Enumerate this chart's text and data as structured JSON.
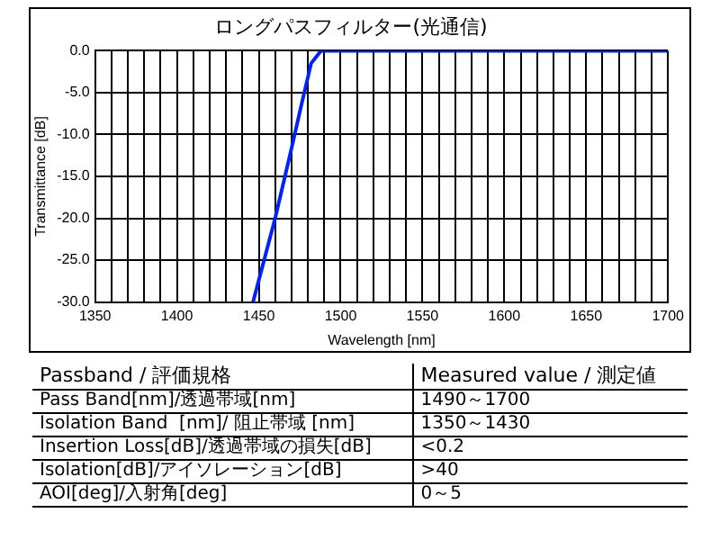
{
  "chart_data": {
    "type": "line",
    "title": "ロングパスフィルター(光通信)",
    "xlabel": "Wavelength [nm]",
    "ylabel": "Transmittance [dB]",
    "series": [
      {
        "color": "#0022ff",
        "x": [
          1446.5,
          1460,
          1469,
          1476,
          1479,
          1482,
          1488,
          1700
        ],
        "values": [
          -30,
          -20,
          -12.5,
          -6.5,
          -4,
          -1.5,
          0,
          0
        ]
      }
    ],
    "xlim": [
      1350,
      1700
    ],
    "xticks": [
      1350,
      {
        "value": 1360,
        "label": null
      },
      {
        "value": 1370,
        "label": null
      },
      {
        "value": 1380,
        "label": null
      },
      {
        "value": 1390,
        "label": null
      },
      1400,
      {
        "value": 1410,
        "label": null
      },
      {
        "value": 1420,
        "label": null
      },
      {
        "value": 1430,
        "label": null
      },
      {
        "value": 1440,
        "label": null
      },
      1450,
      {
        "value": 1460,
        "label": null
      },
      {
        "value": 1470,
        "label": null
      },
      {
        "value": 1480,
        "label": null
      },
      {
        "value": 1490,
        "label": null
      },
      1500,
      {
        "value": 1510,
        "label": null
      },
      {
        "value": 1520,
        "label": null
      },
      {
        "value": 1530,
        "label": null
      },
      {
        "value": 1540,
        "label": null
      },
      1550,
      {
        "value": 1560,
        "label": null
      },
      {
        "value": 1570,
        "label": null
      },
      {
        "value": 1580,
        "label": null
      },
      {
        "value": 1590,
        "label": null
      },
      1600,
      {
        "value": 1610,
        "label": null
      },
      {
        "value": 1620,
        "label": null
      },
      {
        "value": 1630,
        "label": null
      },
      {
        "value": 1640,
        "label": null
      },
      1650,
      {
        "value": 1660,
        "label": null
      },
      {
        "value": 1670,
        "label": null
      },
      {
        "value": 1680,
        "label": null
      },
      {
        "value": 1690,
        "label": null
      },
      1700
    ],
    "ylim": [
      -30,
      0
    ],
    "yticks": [
      {
        "value": -30,
        "label": "-30.0"
      },
      {
        "value": -25,
        "label": "-25.0"
      },
      {
        "value": -20,
        "label": "-20.0"
      },
      {
        "value": -15,
        "label": "-15.0"
      },
      {
        "value": -10,
        "label": "-10.0"
      },
      {
        "value": -5,
        "label": "-5.0"
      },
      {
        "value": 0,
        "label": "0.0"
      }
    ],
    "grid": true,
    "legend": false,
    "marker": "none",
    "line_style": "solid",
    "annotations": [
      "Passband / 評価規格",
      "Measured value / 測定値",
      "Pass Band[nm]/透過帯域[nm]",
      "1490～1700",
      "Isolation Band  [nm]/ 阻止帯域 [nm]",
      "1350～1430",
      "Insertion Loss[dB]/透過帯域の損失[dB]",
      "<0.2",
      "Isolation[dB]/アイソレーション[dB]",
      ">40",
      "AOI[deg]/入射角[deg]",
      "0～5"
    ]
  }
}
